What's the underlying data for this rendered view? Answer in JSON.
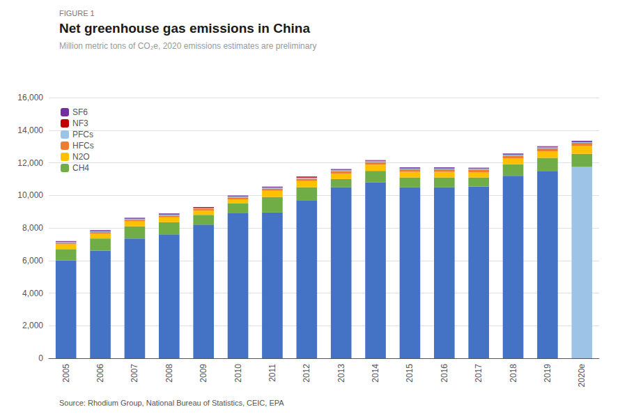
{
  "chart_data": {
    "type": "bar",
    "title": "Net greenhouse gas emissions in China",
    "subtitle": "Million metric tons of CO₂e, 2020 emissions estimates are preliminary",
    "annotations": [
      "FIGURE 1",
      "Source: Rhodium Group, National Bureau of Statistics, CEIC, EPA"
    ],
    "categories": [
      "2005",
      "2006",
      "2007",
      "2008",
      "2009",
      "2010",
      "2011",
      "2012",
      "2013",
      "2014",
      "2015",
      "2016",
      "2017",
      "2018",
      "2019",
      "2020e"
    ],
    "stacked": true,
    "grid": true,
    "legend": "upper left",
    "series": [
      {
        "colors": [
          "#4472C4",
          "#4472C4",
          "#4472C4",
          "#4472C4",
          "#4472C4",
          "#4472C4",
          "#4472C4",
          "#4472C4",
          "#4472C4",
          "#4472C4",
          "#4472C4",
          "#4472C4",
          "#4472C4",
          "#4472C4",
          "#4472C4",
          "#9DC3E6"
        ],
        "values": [
          6000,
          6600,
          7350,
          7600,
          8200,
          8900,
          8950,
          9700,
          10500,
          10800,
          10500,
          10500,
          10550,
          11200,
          11500,
          11750
        ]
      },
      {
        "name": "CH4",
        "color": "#70AD47",
        "values": [
          700,
          750,
          750,
          750,
          600,
          600,
          950,
          800,
          500,
          700,
          600,
          600,
          550,
          700,
          800,
          800
        ]
      },
      {
        "name": "N2O",
        "color": "#FFC000",
        "values": [
          300,
          300,
          300,
          300,
          260,
          250,
          380,
          380,
          340,
          380,
          340,
          340,
          320,
          360,
          400,
          470
        ]
      },
      {
        "name": "HFCs",
        "color": "#ED7D31",
        "values": [
          80,
          90,
          100,
          110,
          110,
          120,
          130,
          140,
          150,
          160,
          160,
          160,
          160,
          180,
          190,
          200
        ]
      },
      {
        "name": "PFCs",
        "color": "#9DC3E6",
        "values": [
          50,
          50,
          50,
          55,
          45,
          50,
          55,
          60,
          55,
          55,
          50,
          50,
          50,
          55,
          55,
          55
        ]
      },
      {
        "name": "NF3",
        "color": "#C00000",
        "values": [
          25,
          28,
          30,
          30,
          28,
          28,
          30,
          35,
          30,
          30,
          28,
          28,
          28,
          30,
          32,
          34
        ]
      },
      {
        "name": "SF6",
        "color": "#7030A0",
        "values": [
          40,
          42,
          42,
          42,
          40,
          40,
          42,
          42,
          38,
          38,
          38,
          38,
          38,
          40,
          40,
          40
        ]
      }
    ],
    "ylim": [
      0,
      16000
    ],
    "yticks": [
      0,
      {
        "value": 2000,
        "label": "2,000"
      },
      {
        "value": 4000,
        "label": "4,000"
      },
      {
        "value": 6000,
        "label": "6,000"
      },
      {
        "value": 8000,
        "label": "8,000"
      },
      {
        "value": 10000,
        "label": "10,000"
      },
      {
        "value": 12000,
        "label": "12,000"
      },
      {
        "value": 14000,
        "label": "14,000"
      },
      {
        "value": 16000,
        "label": "16,000"
      }
    ]
  }
}
